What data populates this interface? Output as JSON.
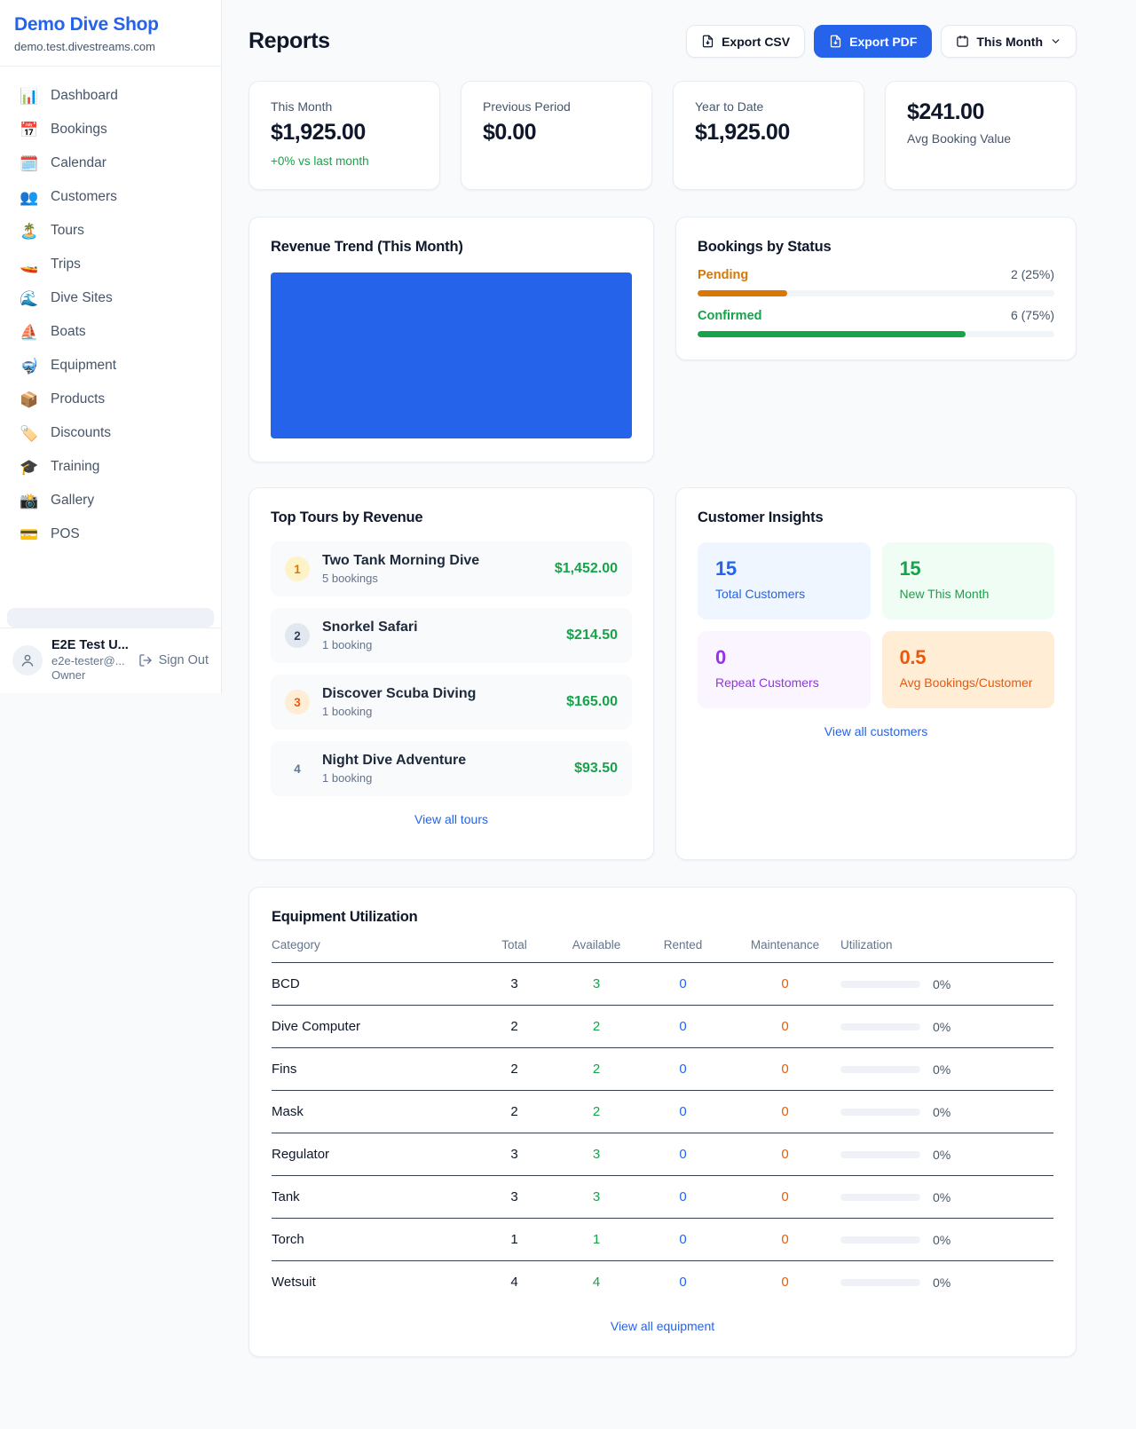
{
  "sidebar": {
    "shop_name": "Demo Dive Shop",
    "domain": "demo.test.divestreams.com",
    "items": [
      {
        "icon": "📊",
        "icon_name": "dashboard-icon",
        "label": "Dashboard"
      },
      {
        "icon": "📅",
        "icon_name": "bookings-calendar-icon",
        "label": "Bookings"
      },
      {
        "icon": "🗓️",
        "icon_name": "calendar-icon",
        "label": "Calendar"
      },
      {
        "icon": "👥",
        "icon_name": "customers-icon",
        "label": "Customers"
      },
      {
        "icon": "🏝️",
        "icon_name": "island-icon",
        "label": "Tours"
      },
      {
        "icon": "🚤",
        "icon_name": "speedboat-icon",
        "label": "Trips"
      },
      {
        "icon": "🌊",
        "icon_name": "wave-icon",
        "label": "Dive Sites"
      },
      {
        "icon": "⛵",
        "icon_name": "sailboat-icon",
        "label": "Boats"
      },
      {
        "icon": "🤿",
        "icon_name": "diving-mask-icon",
        "label": "Equipment"
      },
      {
        "icon": "📦",
        "icon_name": "package-icon",
        "label": "Products"
      },
      {
        "icon": "🏷️",
        "icon_name": "tag-icon",
        "label": "Discounts"
      },
      {
        "icon": "🎓",
        "icon_name": "graduation-cap-icon",
        "label": "Training"
      },
      {
        "icon": "📸",
        "icon_name": "camera-icon",
        "label": "Gallery"
      },
      {
        "icon": "💳",
        "icon_name": "credit-card-icon",
        "label": "POS"
      }
    ],
    "user": {
      "name": "E2E Test U...",
      "email": "e2e-tester@...",
      "role": "Owner",
      "sign_out": "Sign Out"
    }
  },
  "header": {
    "title": "Reports",
    "export_csv": "Export CSV",
    "export_pdf": "Export PDF",
    "period": "This Month",
    "icons": [
      "file-download-icon",
      "file-download-icon",
      "calendar-icon",
      "chevron-down-icon"
    ]
  },
  "stats": [
    {
      "label": "This Month",
      "value": "$1,925.00",
      "change": "+0% vs last month"
    },
    {
      "label": "Previous Period",
      "value": "$0.00"
    },
    {
      "label": "Year to Date",
      "value": "$1,925.00"
    },
    {
      "label": "Avg Booking Value",
      "value": "$241.00",
      "value_first": true
    }
  ],
  "revenue_trend": {
    "title": "Revenue Trend (This Month)",
    "bar_color": "#2563eb"
  },
  "bookings_by_status": {
    "title": "Bookings by Status",
    "rows": [
      {
        "label": "Pending",
        "value": "2 (25%)",
        "percent": 25,
        "color": "#d97706"
      },
      {
        "label": "Confirmed",
        "value": "6 (75%)",
        "percent": 75,
        "color": "#16a34a"
      }
    ]
  },
  "top_tours": {
    "title": "Top Tours by Revenue",
    "view_all": "View all tours",
    "items": [
      {
        "rank": "1",
        "name": "Two Tank Morning Dive",
        "bookings": "5 bookings",
        "revenue": "$1,452.00",
        "rank_bg": "#fef3c7",
        "rank_color": "#d97706"
      },
      {
        "rank": "2",
        "name": "Snorkel Safari",
        "bookings": "1 booking",
        "revenue": "$214.50",
        "rank_bg": "#e2e8f0",
        "rank_color": "#334155"
      },
      {
        "rank": "3",
        "name": "Discover Scuba Diving",
        "bookings": "1 booking",
        "revenue": "$165.00",
        "rank_bg": "#ffedd5",
        "rank_color": "#ea580c"
      },
      {
        "rank": "4",
        "name": "Night Dive Adventure",
        "bookings": "1 booking",
        "revenue": "$93.50",
        "rank_bg": "transparent",
        "rank_color": "#64748b"
      }
    ]
  },
  "customer_insights": {
    "title": "Customer Insights",
    "view_all": "View all customers",
    "tiles": [
      {
        "value": "15",
        "label": "Total Customers",
        "bg": "#eff6ff",
        "color": "#2563eb"
      },
      {
        "value": "15",
        "label": "New This Month",
        "bg": "#f0fdf4",
        "color": "#16a34a"
      },
      {
        "value": "0",
        "label": "Repeat Customers",
        "bg": "#faf5ff",
        "color": "#9333ea"
      },
      {
        "value": "0.5",
        "label": "Avg Bookings/Customer",
        "bg": "#ffedd5",
        "color": "#ea580c"
      }
    ]
  },
  "equipment": {
    "title": "Equipment Utilization",
    "view_all": "View all equipment",
    "columns": [
      "Category",
      "Total",
      "Available",
      "Rented",
      "Maintenance",
      "Utilization"
    ],
    "rows": [
      {
        "category": "BCD",
        "total": "3",
        "available": "3",
        "rented": "0",
        "maintenance": "0",
        "utilization_pct": 0,
        "utilization": "0%"
      },
      {
        "category": "Dive Computer",
        "total": "2",
        "available": "2",
        "rented": "0",
        "maintenance": "0",
        "utilization_pct": 0,
        "utilization": "0%"
      },
      {
        "category": "Fins",
        "total": "2",
        "available": "2",
        "rented": "0",
        "maintenance": "0",
        "utilization_pct": 0,
        "utilization": "0%"
      },
      {
        "category": "Mask",
        "total": "2",
        "available": "2",
        "rented": "0",
        "maintenance": "0",
        "utilization_pct": 0,
        "utilization": "0%"
      },
      {
        "category": "Regulator",
        "total": "3",
        "available": "3",
        "rented": "0",
        "maintenance": "0",
        "utilization_pct": 0,
        "utilization": "0%"
      },
      {
        "category": "Tank",
        "total": "3",
        "available": "3",
        "rented": "0",
        "maintenance": "0",
        "utilization_pct": 0,
        "utilization": "0%"
      },
      {
        "category": "Torch",
        "total": "1",
        "available": "1",
        "rented": "0",
        "maintenance": "0",
        "utilization_pct": 0,
        "utilization": "0%"
      },
      {
        "category": "Wetsuit",
        "total": "4",
        "available": "4",
        "rented": "0",
        "maintenance": "0",
        "utilization_pct": 0,
        "utilization": "0%"
      }
    ]
  }
}
